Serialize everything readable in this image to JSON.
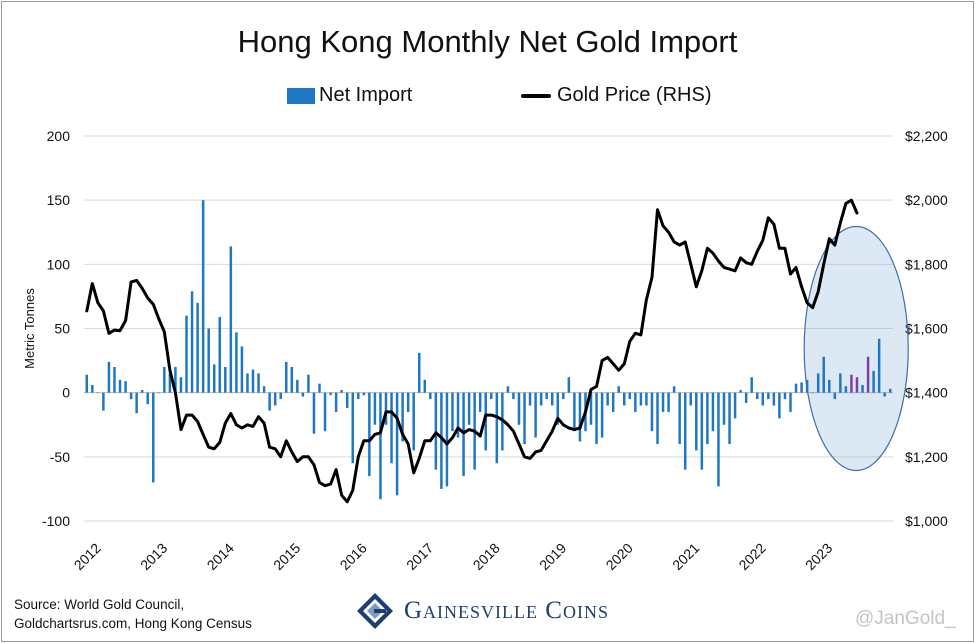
{
  "chart_data": {
    "type": "bar",
    "title": "Hong Kong Monthly Net Gold Import",
    "ylabel": "Metric Tonnes",
    "y2label": "",
    "ylim": [
      -100,
      200
    ],
    "y2lim": [
      1000,
      2200
    ],
    "yticks": [
      "200",
      "150",
      "100",
      "50",
      "0",
      "-50",
      "-100"
    ],
    "y2ticks": [
      "$2,200",
      "$2,000",
      "$1,800",
      "$1,600",
      "$1,400",
      "$1,200",
      "$1,000"
    ],
    "xticks": [
      "2012",
      "2013",
      "2014",
      "2015",
      "2016",
      "2017",
      "2018",
      "2019",
      "2020",
      "2021",
      "2022",
      "2023"
    ],
    "grid": "horizontal",
    "legend_position": "top",
    "start_month": "2012-01",
    "series": [
      {
        "name": "Net Import",
        "kind": "bar",
        "color": "#1f77c4",
        "highlight_color": "#7b3fa8",
        "values": [
          14,
          6,
          0,
          -14,
          24,
          20,
          10,
          9,
          -5,
          -16,
          2,
          -9,
          -70,
          0,
          20,
          15,
          20,
          12,
          60,
          79,
          70,
          150,
          50,
          22,
          59,
          20,
          114,
          47,
          36,
          15,
          18,
          15,
          5,
          -14,
          -10,
          -5,
          24,
          20,
          10,
          -3,
          14,
          -32,
          7,
          -30,
          -2,
          -15,
          2,
          -12,
          -55,
          -5,
          -2,
          -65,
          -25,
          -83,
          -25,
          -55,
          -80,
          -38,
          -15,
          -45,
          31,
          10,
          -5,
          -60,
          -75,
          -73,
          -30,
          -35,
          -65,
          -25,
          -60,
          -15,
          -45,
          -5,
          -55,
          -45,
          5,
          -5,
          -25,
          -40,
          -10,
          -35,
          -10,
          -5,
          -10,
          -25,
          -5,
          12,
          -30,
          -38,
          -30,
          -25,
          -40,
          -35,
          -10,
          -15,
          5,
          -10,
          -5,
          -15,
          -10,
          -10,
          -30,
          -40,
          -15,
          -15,
          5,
          -40,
          -60,
          -10,
          -45,
          -60,
          -40,
          -30,
          -73,
          -25,
          -40,
          -20,
          2,
          -8,
          12,
          -5,
          -10,
          -5,
          -10,
          -20,
          -5,
          -15,
          7,
          8,
          10,
          0,
          15,
          28,
          10,
          -5,
          15,
          5,
          14,
          12,
          6,
          28,
          17,
          42,
          -3,
          3
        ],
        "highlight_from_index": 132
      },
      {
        "name": "Gold Price (RHS)",
        "kind": "line",
        "color": "#000000",
        "values": [
          1655,
          1740,
          1680,
          1655,
          1585,
          1595,
          1593,
          1625,
          1745,
          1750,
          1725,
          1695,
          1675,
          1630,
          1590,
          1470,
          1400,
          1285,
          1330,
          1330,
          1310,
          1270,
          1230,
          1225,
          1245,
          1305,
          1335,
          1300,
          1290,
          1300,
          1295,
          1325,
          1305,
          1230,
          1225,
          1200,
          1250,
          1215,
          1185,
          1200,
          1200,
          1175,
          1120,
          1110,
          1115,
          1160,
          1080,
          1060,
          1095,
          1200,
          1250,
          1250,
          1270,
          1275,
          1340,
          1340,
          1320,
          1270,
          1240,
          1150,
          1195,
          1250,
          1250,
          1275,
          1260,
          1240,
          1260,
          1290,
          1275,
          1285,
          1280,
          1265,
          1330,
          1330,
          1325,
          1315,
          1300,
          1280,
          1240,
          1200,
          1195,
          1215,
          1220,
          1250,
          1280,
          1320,
          1300,
          1290,
          1285,
          1290,
          1340,
          1410,
          1420,
          1500,
          1510,
          1490,
          1470,
          1490,
          1560,
          1585,
          1580,
          1690,
          1760,
          1970,
          1920,
          1900,
          1870,
          1860,
          1870,
          1800,
          1730,
          1780,
          1850,
          1835,
          1810,
          1790,
          1785,
          1780,
          1820,
          1805,
          1800,
          1840,
          1875,
          1945,
          1925,
          1850,
          1850,
          1770,
          1790,
          1730,
          1680,
          1665,
          1715,
          1800,
          1880,
          1860,
          1930,
          1990,
          2000,
          1960
        ]
      }
    ]
  },
  "footer": {
    "source_line1": "Source: World Gold Council,",
    "source_line2": "Goldchartsrus.com, Hong Kong Census",
    "brand": "Gainesville Coins",
    "handle": "@JanGold_"
  }
}
